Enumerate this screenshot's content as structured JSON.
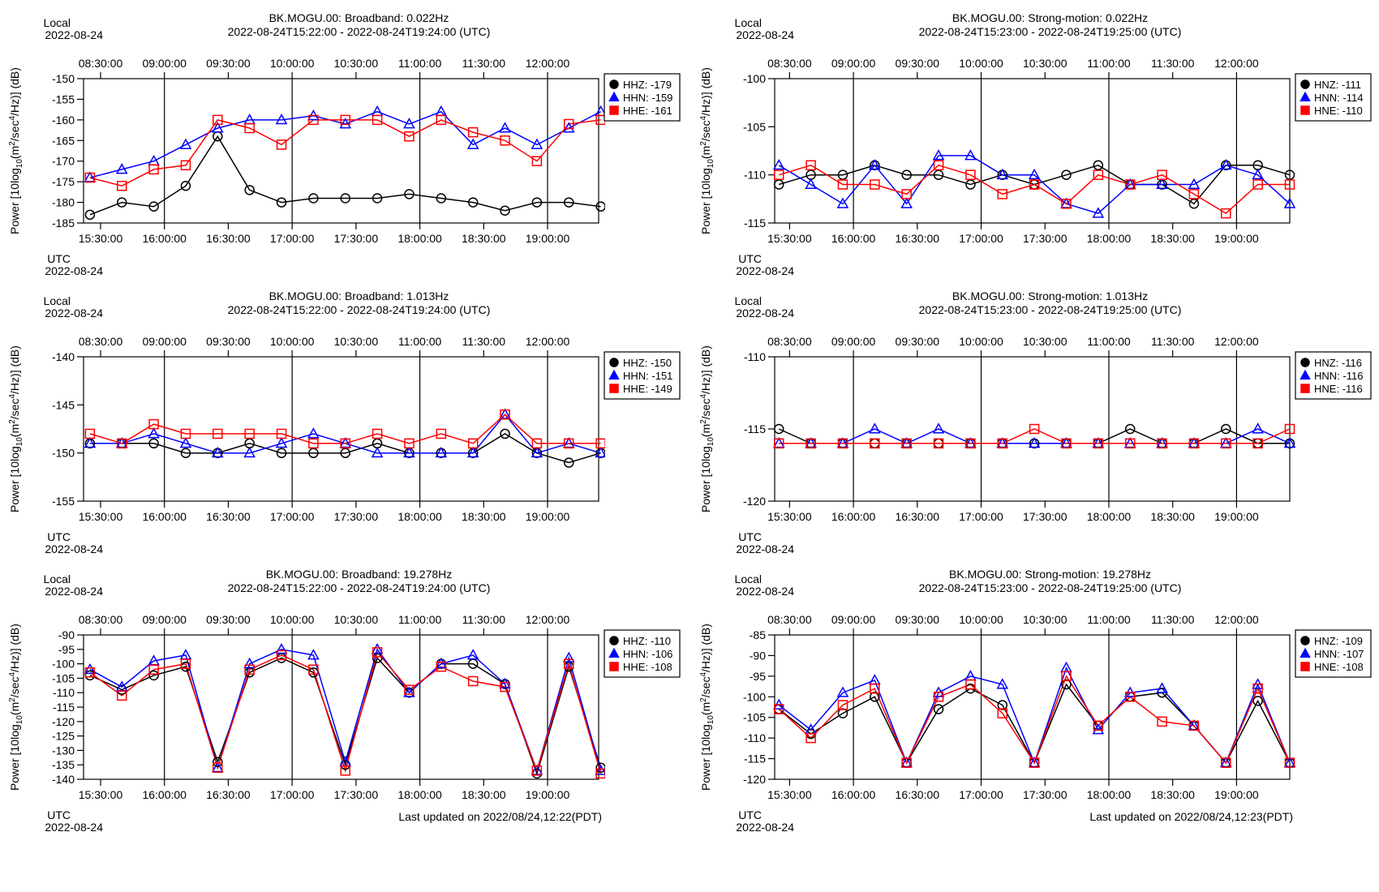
{
  "colors": {
    "HHZ": "#000000",
    "HHN": "#0000ff",
    "HHE": "#ff0000"
  },
  "marker_icons": [
    "circle-icon",
    "triangle-icon",
    "square-icon"
  ],
  "y_axis_label": "Power [10log10(m2/sec4/Hz)] (dB)",
  "y_axis_parts": {
    "a": "Power [10log",
    "sub": "10",
    "b": "(m",
    "sup1": "2",
    "c": "/sec",
    "sup2": "4",
    "d": "/Hz)] (dB)"
  },
  "top_corner": {
    "label": "Local",
    "date": "2022-08-24"
  },
  "bottom_corner": {
    "label": "UTC",
    "date": "2022-08-24"
  },
  "local_ticks": [
    "08:30:00",
    "09:00:00",
    "09:30:00",
    "10:00:00",
    "10:30:00",
    "11:00:00",
    "11:30:00",
    "12:00:00"
  ],
  "utc_ticks": [
    "15:30:00",
    "16:00:00",
    "16:30:00",
    "17:00:00",
    "17:30:00",
    "18:00:00",
    "18:30:00",
    "19:00:00"
  ],
  "footers": [
    "Last updated on 2022/08/24,12:22(PDT)",
    "Last updated on 2022/08/24,12:23(PDT)"
  ],
  "chart_data": [
    {
      "type": "line",
      "title": "BK.MOGU.00: Broadband: 0.022Hz",
      "subtitle": "2022-08-24T15:22:00 - 2022-08-24T19:24:00 (UTC)",
      "ylim": [
        -185,
        -150
      ],
      "yticks": [
        -185,
        -180,
        -175,
        -170,
        -165,
        -160,
        -155,
        -150
      ],
      "x_start": "15:22:00",
      "x_end": "19:24:00",
      "x": [
        "15:25",
        "15:40",
        "15:55",
        "16:10",
        "16:25",
        "16:40",
        "16:55",
        "17:10",
        "17:25",
        "17:40",
        "17:55",
        "18:10",
        "18:25",
        "18:40",
        "18:55",
        "19:10",
        "19:25"
      ],
      "series": [
        {
          "name": "HHZ",
          "legend": "HHZ: -179",
          "values": [
            -183,
            -180,
            -181,
            -176,
            -164,
            -177,
            -180,
            -179,
            -179,
            -179,
            -178,
            -179,
            -180,
            -182,
            -180,
            -180,
            -181
          ]
        },
        {
          "name": "HHN",
          "legend": "HHN: -159",
          "values": [
            -174,
            -172,
            -170,
            -166,
            -162,
            -160,
            -160,
            -159,
            -161,
            -158,
            -161,
            -158,
            -166,
            -162,
            -166,
            -162,
            -158
          ]
        },
        {
          "name": "HHE",
          "legend": "HHE: -161",
          "values": [
            -174,
            -176,
            -172,
            -171,
            -160,
            -162,
            -166,
            -160,
            -160,
            -160,
            -164,
            -160,
            -163,
            -165,
            -170,
            -161,
            -160
          ]
        }
      ]
    },
    {
      "type": "line",
      "title": "BK.MOGU.00: Strong-motion: 0.022Hz",
      "subtitle": "2022-08-24T15:23:00 - 2022-08-24T19:25:00 (UTC)",
      "ylim": [
        -115,
        -100
      ],
      "yticks": [
        -115,
        -110,
        -105,
        -100
      ],
      "x_start": "15:23:00",
      "x_end": "19:25:00",
      "x": [
        "15:25",
        "15:40",
        "15:55",
        "16:10",
        "16:25",
        "16:40",
        "16:55",
        "17:10",
        "17:25",
        "17:40",
        "17:55",
        "18:10",
        "18:25",
        "18:40",
        "18:55",
        "19:10",
        "19:25"
      ],
      "series": [
        {
          "name": "HNZ",
          "legend": "HNZ: -111",
          "values": [
            -111,
            -110,
            -110,
            -109,
            -110,
            -110,
            -111,
            -110,
            -111,
            -110,
            -109,
            -111,
            -111,
            -113,
            -109,
            -109,
            -110
          ]
        },
        {
          "name": "HNN",
          "legend": "HNN: -114",
          "values": [
            -109,
            -111,
            -113,
            -109,
            -113,
            -108,
            -108,
            -110,
            -110,
            -113,
            -114,
            -111,
            -111,
            -111,
            -109,
            -110,
            -113
          ]
        },
        {
          "name": "HNE",
          "legend": "HNE: -110",
          "values": [
            -110,
            -109,
            -111,
            -111,
            -112,
            -109,
            -110,
            -112,
            -111,
            -113,
            -110,
            -111,
            -110,
            -112,
            -114,
            -111,
            -111
          ]
        }
      ]
    },
    {
      "type": "line",
      "title": "BK.MOGU.00: Broadband: 1.013Hz",
      "subtitle": "2022-08-24T15:22:00 - 2022-08-24T19:24:00 (UTC)",
      "ylim": [
        -155,
        -140
      ],
      "yticks": [
        -155,
        -150,
        -145,
        -140
      ],
      "x_start": "15:22:00",
      "x_end": "19:24:00",
      "x": [
        "15:25",
        "15:40",
        "15:55",
        "16:10",
        "16:25",
        "16:40",
        "16:55",
        "17:10",
        "17:25",
        "17:40",
        "17:55",
        "18:10",
        "18:25",
        "18:40",
        "18:55",
        "19:10",
        "19:25"
      ],
      "series": [
        {
          "name": "HHZ",
          "legend": "HHZ: -150",
          "values": [
            -149,
            -149,
            -149,
            -150,
            -150,
            -149,
            -150,
            -150,
            -150,
            -149,
            -150,
            -150,
            -150,
            -148,
            -150,
            -151,
            -150
          ]
        },
        {
          "name": "HHN",
          "legend": "HHN: -151",
          "values": [
            -149,
            -149,
            -148,
            -149,
            -150,
            -150,
            -149,
            -148,
            -149,
            -150,
            -150,
            -150,
            -150,
            -146,
            -150,
            -149,
            -150
          ]
        },
        {
          "name": "HHE",
          "legend": "HHE: -149",
          "values": [
            -148,
            -149,
            -147,
            -148,
            -148,
            -148,
            -148,
            -149,
            -149,
            -148,
            -149,
            -148,
            -149,
            -146,
            -149,
            -149,
            -149
          ]
        }
      ]
    },
    {
      "type": "line",
      "title": "BK.MOGU.00: Strong-motion: 1.013Hz",
      "subtitle": "2022-08-24T15:23:00 - 2022-08-24T19:25:00 (UTC)",
      "ylim": [
        -120,
        -110
      ],
      "yticks": [
        -120,
        -115,
        -110
      ],
      "x_start": "15:23:00",
      "x_end": "19:25:00",
      "x": [
        "15:25",
        "15:40",
        "15:55",
        "16:10",
        "16:25",
        "16:40",
        "16:55",
        "17:10",
        "17:25",
        "17:40",
        "17:55",
        "18:10",
        "18:25",
        "18:40",
        "18:55",
        "19:10",
        "19:25"
      ],
      "series": [
        {
          "name": "HNZ",
          "legend": "HNZ: -116",
          "values": [
            -115,
            -116,
            -116,
            -116,
            -116,
            -116,
            -116,
            -116,
            -116,
            -116,
            -116,
            -115,
            -116,
            -116,
            -115,
            -116,
            -116
          ]
        },
        {
          "name": "HNN",
          "legend": "HNN: -116",
          "values": [
            -116,
            -116,
            -116,
            -115,
            -116,
            -115,
            -116,
            -116,
            -116,
            -116,
            -116,
            -116,
            -116,
            -116,
            -116,
            -115,
            -116
          ]
        },
        {
          "name": "HNE",
          "legend": "HNE: -116",
          "values": [
            -116,
            -116,
            -116,
            -116,
            -116,
            -116,
            -116,
            -116,
            -115,
            -116,
            -116,
            -116,
            -116,
            -116,
            -116,
            -116,
            -115
          ]
        }
      ]
    },
    {
      "type": "line",
      "title": "BK.MOGU.00: Broadband: 19.278Hz",
      "subtitle": "2022-08-24T15:22:00 - 2022-08-24T19:24:00 (UTC)",
      "ylim": [
        -140,
        -90
      ],
      "yticks": [
        -140,
        -135,
        -130,
        -125,
        -120,
        -115,
        -110,
        -105,
        -100,
        -95,
        -90
      ],
      "x_start": "15:22:00",
      "x_end": "19:24:00",
      "x": [
        "15:25",
        "15:40",
        "15:55",
        "16:10",
        "16:25",
        "16:40",
        "16:55",
        "17:10",
        "17:25",
        "17:40",
        "17:55",
        "18:10",
        "18:25",
        "18:40",
        "18:55",
        "19:10",
        "19:25"
      ],
      "series": [
        {
          "name": "HHZ",
          "legend": "HHZ: -110",
          "values": [
            -104,
            -109,
            -104,
            -101,
            -134,
            -103,
            -98,
            -103,
            -135,
            -98,
            -110,
            -100,
            -100,
            -107,
            -138,
            -101,
            -136
          ]
        },
        {
          "name": "HHN",
          "legend": "HHN: -106",
          "values": [
            -102,
            -108,
            -99,
            -97,
            -136,
            -100,
            -95,
            -97,
            -134,
            -95,
            -110,
            -100,
            -97,
            -107,
            -137,
            -98,
            -137
          ]
        },
        {
          "name": "HHE",
          "legend": "HHE: -108",
          "values": [
            -103,
            -111,
            -102,
            -100,
            -136,
            -102,
            -97,
            -102,
            -137,
            -96,
            -109,
            -101,
            -106,
            -108,
            -137,
            -100,
            -138
          ]
        }
      ]
    },
    {
      "type": "line",
      "title": "BK.MOGU.00: Strong-motion: 19.278Hz",
      "subtitle": "2022-08-24T15:23:00 - 2022-08-24T19:25:00 (UTC)",
      "ylim": [
        -120,
        -85
      ],
      "yticks": [
        -120,
        -115,
        -110,
        -105,
        -100,
        -95,
        -90,
        -85
      ],
      "x_start": "15:23:00",
      "x_end": "19:25:00",
      "x": [
        "15:25",
        "15:40",
        "15:55",
        "16:10",
        "16:25",
        "16:40",
        "16:55",
        "17:10",
        "17:25",
        "17:40",
        "17:55",
        "18:10",
        "18:25",
        "18:40",
        "18:55",
        "19:10",
        "19:25"
      ],
      "series": [
        {
          "name": "HNZ",
          "legend": "HNZ: -109",
          "values": [
            -103,
            -109,
            -104,
            -100,
            -116,
            -103,
            -98,
            -102,
            -116,
            -97,
            -107,
            -100,
            -99,
            -107,
            -116,
            -101,
            -116
          ]
        },
        {
          "name": "HNN",
          "legend": "HNN: -107",
          "values": [
            -102,
            -108,
            -99,
            -96,
            -116,
            -99,
            -95,
            -97,
            -116,
            -93,
            -108,
            -99,
            -98,
            -107,
            -116,
            -97,
            -116
          ]
        },
        {
          "name": "HNE",
          "legend": "HNE: -108",
          "values": [
            -103,
            -110,
            -102,
            -98,
            -116,
            -100,
            -97,
            -104,
            -116,
            -95,
            -107,
            -100,
            -106,
            -107,
            -116,
            -98,
            -116
          ]
        }
      ]
    }
  ]
}
